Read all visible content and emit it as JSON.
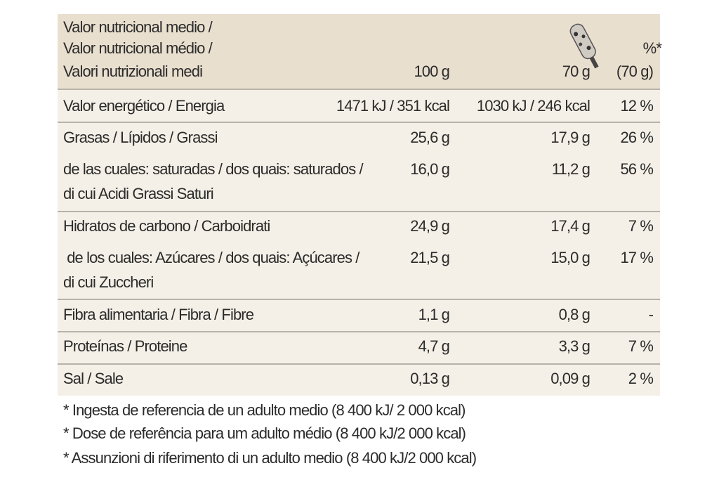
{
  "table": {
    "header": {
      "label_lines": [
        "Valor nutricional medio /",
        "Valor nutricional médio /",
        "Valori nutrizionali medi"
      ],
      "col_100": "100 g",
      "col_portion": "70 g",
      "col_pct": [
        "%*",
        "(70 g)"
      ]
    },
    "rows": [
      {
        "label": [
          "Valor energético / Energia"
        ],
        "per100": "1471 kJ / 351 kcal",
        "portion": "1030 kJ / 246 kcal",
        "pct": "12 %"
      },
      {
        "label": [
          "Grasas / Lípidos / Grassi"
        ],
        "per100": "25,6 g",
        "portion": "17,9 g",
        "pct": "26 %"
      },
      {
        "label": [
          "de las cuales: saturadas / dos quais: saturados /",
          "di cui Acidi Grassi Saturi"
        ],
        "per100": "16,0 g",
        "portion": "11,2 g",
        "pct": "56 %"
      },
      {
        "label": [
          "Hidratos de carbono / Carboidrati"
        ],
        "per100": "24,9 g",
        "portion": "17,4 g",
        "pct": "7 %"
      },
      {
        "label": [
          " de los cuales: Azúcares / dos quais: Açúcares /",
          "di cui Zuccheri"
        ],
        "per100": "21,5 g",
        "portion": "15,0 g",
        "pct": "17 %"
      },
      {
        "label": [
          "Fibra alimentaria / Fibra / Fibre"
        ],
        "per100": "1,1 g",
        "portion": "0,8 g",
        "pct": "-"
      },
      {
        "label": [
          "Proteínas / Proteine"
        ],
        "per100": "4,7 g",
        "portion": "3,3 g",
        "pct": "7 %"
      },
      {
        "label": [
          "Sal / Sale"
        ],
        "per100": "0,13 g",
        "portion": "0,09 g",
        "pct": "2 %"
      }
    ]
  },
  "footnotes": [
    "* Ingesta de referencia de un adulto medio (8 400 kJ/ 2 000 kcal)",
    "* Dose de referência para um adulto médio (8 400 kJ/2 000 kcal)",
    "* Assunzioni di riferimento di un adulto medio (8 400 kJ/2 000 kcal)"
  ]
}
